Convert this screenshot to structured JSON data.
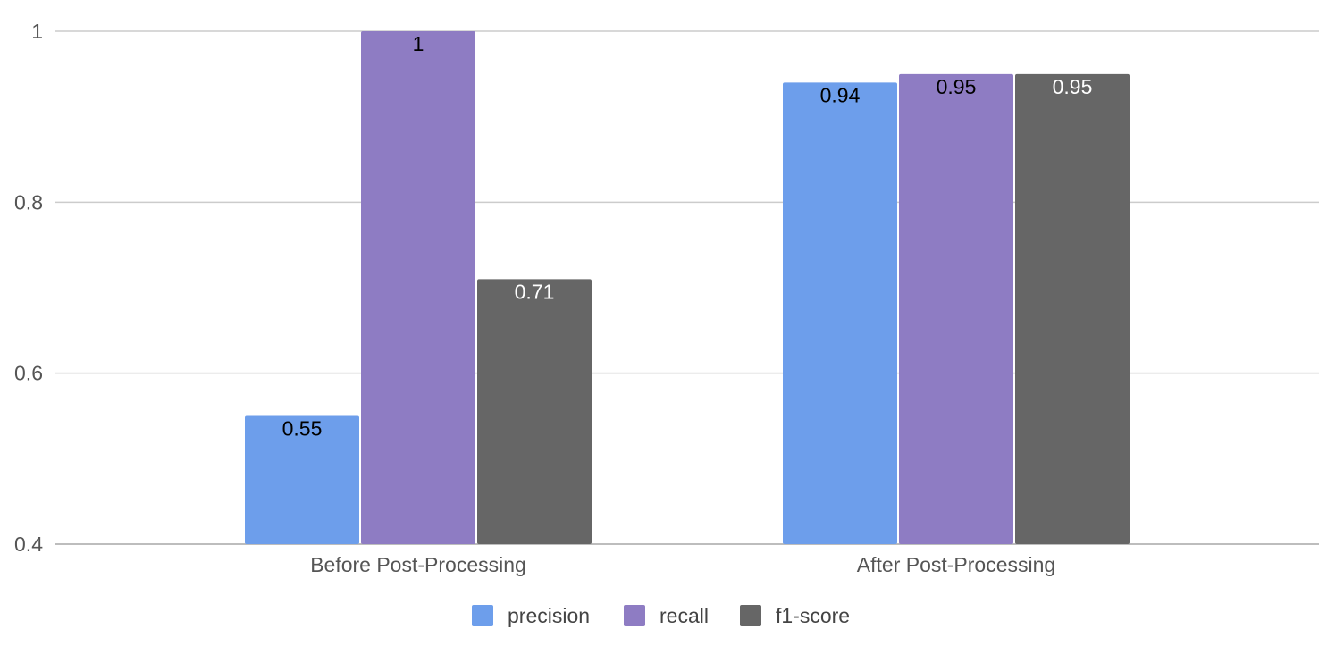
{
  "chart_data": {
    "type": "bar",
    "title": "",
    "xlabel": "",
    "ylabel": "",
    "ylim": [
      0.4,
      1.0
    ],
    "yticks": [
      0.4,
      0.6,
      0.8,
      1
    ],
    "ytick_labels": [
      "0.4",
      "0.6",
      "0.8",
      "1"
    ],
    "grid": true,
    "legend_position": "bottom",
    "categories": [
      "Before Post-Processing",
      "After Post-Processing"
    ],
    "series": [
      {
        "name": "precision",
        "color": "#6d9eeb",
        "label_color": "#000000",
        "values": [
          0.55,
          0.94
        ],
        "data_labels": [
          "0.55",
          "0.94"
        ]
      },
      {
        "name": "recall",
        "color": "#8e7cc3",
        "label_color": "#000000",
        "values": [
          1,
          0.95
        ],
        "data_labels": [
          "1",
          "0.95"
        ]
      },
      {
        "name": "f1-score",
        "color": "#666666",
        "label_color": "#ffffff",
        "values": [
          0.71,
          0.95
        ],
        "data_labels": [
          "0.71",
          "0.95"
        ]
      }
    ]
  }
}
